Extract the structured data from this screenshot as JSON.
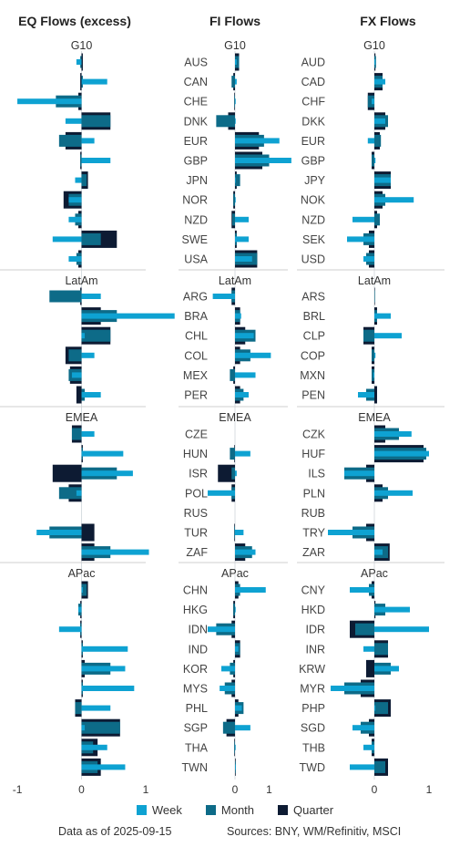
{
  "colors": {
    "week": "#0ea2d2",
    "month": "#0d6b88",
    "quarter": "#0d1b33",
    "separator": "#cfcfcf",
    "zero": "#d8dde2"
  },
  "footer": {
    "date_note": "Data as of 2025-09-15",
    "sources": "Sources:  BNY, WM/Refinitiv, MSCI"
  },
  "legend": [
    {
      "name": "Week",
      "color": "#0ea2d2"
    },
    {
      "name": "Month",
      "color": "#0d6b88"
    },
    {
      "name": "Quarter",
      "color": "#0d1b33"
    }
  ],
  "chart_data": [
    {
      "type": "bar",
      "title": "EQ Flows (excess)",
      "xlim": [
        -1.1,
        1.0
      ],
      "ticks": [
        -1,
        0,
        1
      ],
      "groups": [
        {
          "name": "G10",
          "rows": [
            [
              -0.08,
              -0.02,
              0.02
            ],
            [
              0.4,
              0.02,
              -0.02
            ],
            [
              -1.0,
              -0.4,
              -0.05
            ],
            [
              -0.25,
              0.45,
              0.45
            ],
            [
              0.2,
              -0.35,
              -0.25
            ],
            [
              0.45,
              -0.02,
              -0.02
            ],
            [
              -0.1,
              0.08,
              0.1
            ],
            [
              -0.2,
              -0.2,
              -0.28
            ],
            [
              -0.2,
              -0.1,
              -0.05
            ],
            [
              -0.45,
              0.3,
              0.55
            ],
            [
              -0.2,
              -0.08,
              -0.05
            ]
          ]
        },
        {
          "name": "LatAm",
          "rows": [
            [
              0.3,
              -0.5,
              -0.02
            ],
            [
              1.45,
              0.55,
              0.3
            ],
            [
              0.05,
              0.45,
              0.45
            ],
            [
              0.2,
              -0.2,
              -0.25
            ],
            [
              -0.15,
              -0.2,
              -0.18
            ],
            [
              0.3,
              0.05,
              -0.08
            ]
          ]
        },
        {
          "name": "EMEA",
          "rows": [
            [
              0.2,
              -0.15,
              -0.15
            ],
            [
              0.65,
              0.02,
              0.02
            ],
            [
              0.8,
              0.55,
              -0.45
            ],
            [
              -0.08,
              -0.35,
              -0.2
            ],
            [
              0.0,
              0.0,
              0.0
            ],
            [
              -0.7,
              -0.5,
              0.2
            ],
            [
              1.05,
              0.45,
              0.2
            ]
          ]
        },
        {
          "name": "APac",
          "rows": [
            [
              0.02,
              0.08,
              0.1
            ],
            [
              -0.05,
              -0.05,
              -0.02
            ],
            [
              -0.35,
              -0.02,
              -0.02
            ],
            [
              0.72,
              0.02,
              0.02
            ],
            [
              0.68,
              0.45,
              0.05
            ],
            [
              0.82,
              0.02,
              0.02
            ],
            [
              0.45,
              -0.1,
              -0.1
            ],
            [
              0.05,
              0.6,
              0.6
            ],
            [
              0.4,
              0.18,
              0.25
            ],
            [
              0.68,
              0.25,
              0.3
            ]
          ]
        }
      ]
    },
    {
      "type": "bar",
      "title": "FI Flows",
      "xlim": [
        -0.8,
        1.6
      ],
      "ticks": [
        0,
        1
      ],
      "groups": [
        {
          "name": "G10",
          "categories": [
            "AUS",
            "CAN",
            "CHE",
            "DNK",
            "EUR",
            "GBP",
            "JPN",
            "NOR",
            "NZD",
            "SWE",
            "USA"
          ],
          "rows": [
            [
              0.05,
              0.12,
              0.12
            ],
            [
              0.05,
              -0.1,
              -0.05
            ],
            [
              0.02,
              -0.02,
              -0.02
            ],
            [
              0.02,
              -0.55,
              -0.2
            ],
            [
              1.3,
              0.85,
              0.7
            ],
            [
              1.65,
              1.0,
              0.8
            ],
            [
              0.02,
              0.15,
              0.05
            ],
            [
              0.02,
              -0.05,
              -0.05
            ],
            [
              0.4,
              -0.08,
              -0.1
            ],
            [
              0.4,
              0.05,
              0.05
            ],
            [
              0.5,
              0.65,
              0.65
            ]
          ]
        },
        {
          "name": "LatAm",
          "categories": [
            "ARG",
            "BRA",
            "CHL",
            "COL",
            "MEX",
            "PER"
          ],
          "rows": [
            [
              -0.65,
              -0.1,
              -0.1
            ],
            [
              0.18,
              0.15,
              0.15
            ],
            [
              0.55,
              0.6,
              0.3
            ],
            [
              1.05,
              0.45,
              0.15
            ],
            [
              0.6,
              -0.15,
              -0.05
            ],
            [
              0.4,
              0.25,
              0.15
            ]
          ]
        },
        {
          "name": "EMEA",
          "categories": [
            "CZE",
            "HUN",
            "ISR",
            "POL",
            "RUS",
            "TUR",
            "ZAF"
          ],
          "rows": [
            [
              0.0,
              0.0,
              0.0
            ],
            [
              0.45,
              -0.15,
              -0.02
            ],
            [
              0.05,
              -0.1,
              -0.5
            ],
            [
              -0.8,
              -0.1,
              -0.1
            ],
            [
              0.0,
              0.0,
              0.0
            ],
            [
              0.25,
              -0.02,
              -0.02
            ],
            [
              0.6,
              0.5,
              0.3
            ]
          ]
        },
        {
          "name": "APac",
          "categories": [
            "CHN",
            "HKG",
            "IDN",
            "IND",
            "KOR",
            "MYS",
            "PHL",
            "SGP",
            "THA",
            "TWN"
          ],
          "rows": [
            [
              0.9,
              0.15,
              0.1
            ],
            [
              0.02,
              -0.05,
              -0.05
            ],
            [
              -0.8,
              -0.55,
              -0.1
            ],
            [
              0.1,
              0.15,
              0.15
            ],
            [
              -0.4,
              -0.15,
              -0.05
            ],
            [
              -0.45,
              -0.3,
              -0.1
            ],
            [
              0.2,
              0.25,
              0.1
            ],
            [
              0.45,
              -0.35,
              -0.25
            ],
            [
              0.02,
              -0.02,
              -0.02
            ],
            [
              0.02,
              0.02,
              0.02
            ]
          ]
        }
      ]
    },
    {
      "type": "bar",
      "title": "FX Flows",
      "xlim": [
        -0.9,
        1.15
      ],
      "ticks": [
        0,
        1
      ],
      "groups": [
        {
          "name": "G10",
          "categories": [
            "AUD",
            "CAD",
            "CHF",
            "DKK",
            "EUR",
            "GBP",
            "JPY",
            "NOK",
            "NZD",
            "SEK",
            "USD"
          ],
          "rows": [
            [
              0.02,
              0.03,
              0.02
            ],
            [
              0.2,
              0.15,
              0.15
            ],
            [
              -0.05,
              -0.12,
              -0.12
            ],
            [
              0.2,
              0.25,
              0.2
            ],
            [
              -0.12,
              0.12,
              0.1
            ],
            [
              0.02,
              -0.05,
              -0.05
            ],
            [
              0.3,
              0.3,
              0.3
            ],
            [
              0.72,
              0.2,
              0.15
            ],
            [
              -0.4,
              0.1,
              0.05
            ],
            [
              -0.5,
              -0.2,
              -0.1
            ],
            [
              -0.2,
              -0.15,
              -0.1
            ]
          ]
        },
        {
          "name": "LatAm",
          "categories": [
            "ARS",
            "BRL",
            "CLP",
            "COP",
            "MXN",
            "PEN"
          ],
          "rows": [
            [
              0.0,
              0.01,
              0.01
            ],
            [
              0.3,
              0.05,
              0.05
            ],
            [
              0.5,
              -0.2,
              -0.2
            ],
            [
              0.02,
              -0.05,
              -0.05
            ],
            [
              -0.02,
              -0.05,
              -0.05
            ],
            [
              -0.3,
              -0.15,
              0.05
            ]
          ]
        },
        {
          "name": "EMEA",
          "categories": [
            "CZK",
            "HUF",
            "ILS",
            "PLN",
            "RUB",
            "TRY",
            "ZAR"
          ],
          "rows": [
            [
              0.68,
              0.45,
              0.2
            ],
            [
              1.0,
              0.95,
              0.9
            ],
            [
              -0.55,
              -0.55,
              -0.15
            ],
            [
              0.7,
              0.25,
              0.15
            ],
            [
              0.0,
              0.0,
              0.0
            ],
            [
              -0.85,
              -0.4,
              -0.15
            ],
            [
              0.15,
              0.25,
              0.28
            ]
          ]
        },
        {
          "name": "APac",
          "categories": [
            "CNY",
            "HKD",
            "IDR",
            "INR",
            "KRW",
            "MYR",
            "PHP",
            "SGD",
            "THB",
            "TWD"
          ],
          "rows": [
            [
              -0.45,
              -0.1,
              -0.05
            ],
            [
              0.65,
              0.2,
              0.02
            ],
            [
              1.0,
              -0.35,
              -0.45
            ],
            [
              -0.2,
              0.25,
              0.25
            ],
            [
              0.45,
              0.3,
              -0.15
            ],
            [
              -0.8,
              -0.55,
              -0.25
            ],
            [
              0.02,
              0.25,
              0.3
            ],
            [
              -0.4,
              -0.25,
              -0.1
            ],
            [
              -0.2,
              -0.05,
              -0.05
            ],
            [
              -0.45,
              0.2,
              0.25
            ]
          ]
        }
      ]
    }
  ]
}
